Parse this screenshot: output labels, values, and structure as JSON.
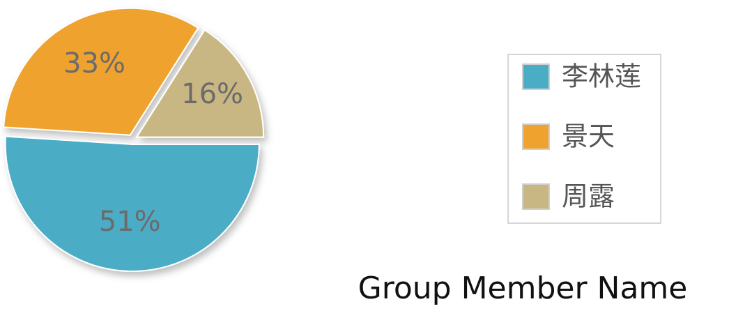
{
  "chart_data": {
    "type": "pie",
    "title": "Group Member Name",
    "categories": [
      "李林莲",
      "景天",
      "周露"
    ],
    "values": [
      51,
      33,
      16
    ],
    "value_labels": [
      "51%",
      "33%",
      "16%"
    ],
    "colors": [
      "#4bacc6",
      "#f0a22e",
      "#c9b783"
    ],
    "legend": "right"
  }
}
